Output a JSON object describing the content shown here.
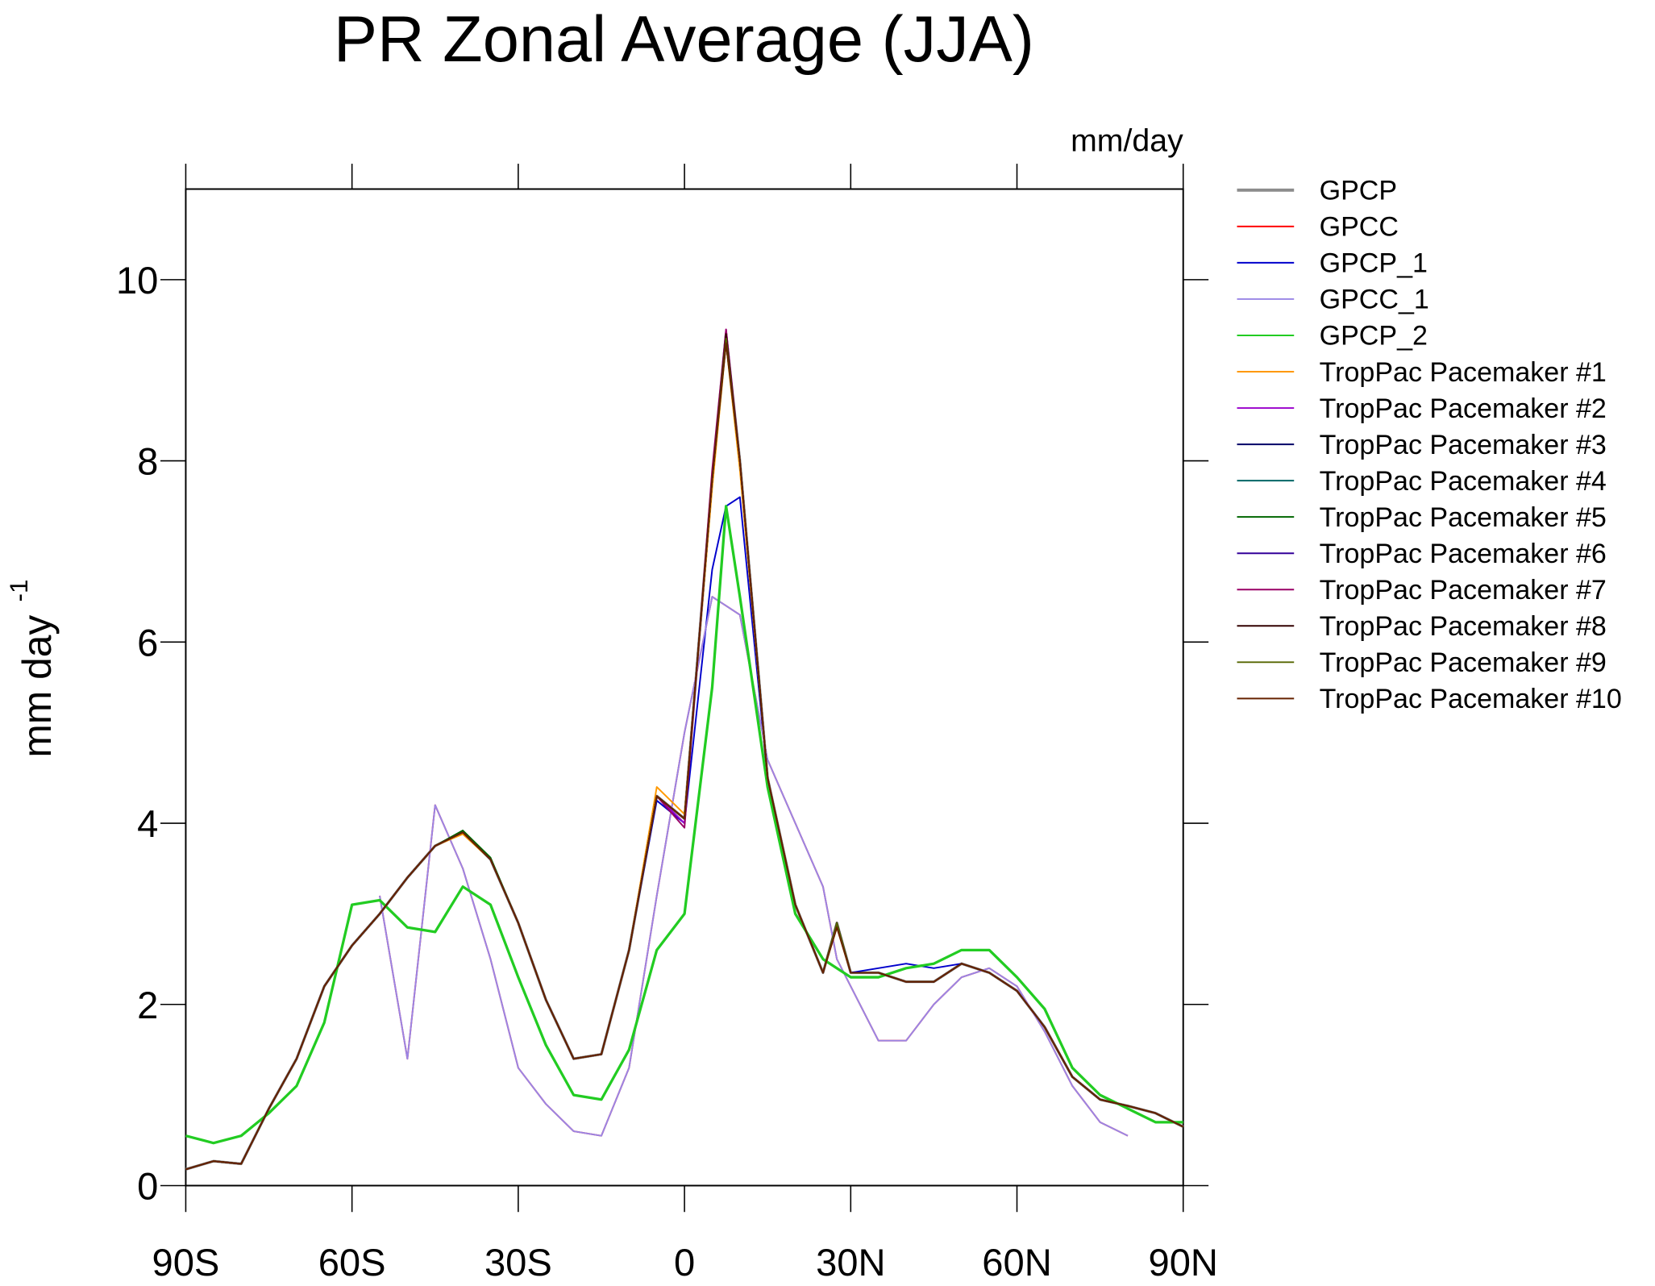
{
  "chart_data": {
    "type": "line",
    "title": "PR Zonal Average (JJA)",
    "subtitle": "mm/day",
    "ylabel": "mm day",
    "ylabel_superscript": "-1",
    "x": [
      -90,
      -85,
      -80,
      -75,
      -70,
      -65,
      -60,
      -55,
      -50,
      -45,
      -40,
      -35,
      -30,
      -25,
      -20,
      -15,
      -10,
      -5,
      0,
      5,
      7.5,
      10,
      15,
      20,
      25,
      27.5,
      30,
      35,
      40,
      45,
      50,
      55,
      60,
      65,
      70,
      75,
      80,
      85,
      90
    ],
    "xlim": [
      -90,
      90
    ],
    "xticks": [
      {
        "value": -90,
        "label": "90S"
      },
      {
        "value": -60,
        "label": "60S"
      },
      {
        "value": -30,
        "label": "30S"
      },
      0,
      {
        "value": 30,
        "label": "30N"
      },
      {
        "value": 60,
        "label": "60N"
      },
      {
        "value": 90,
        "label": "90N"
      }
    ],
    "ylim": [
      0,
      11
    ],
    "yticks": [
      0,
      2,
      4,
      6,
      8,
      10
    ],
    "legend": "outside right",
    "series": [
      {
        "name": "GPCP",
        "color": "#8c8c8c",
        "values": [
          0.18,
          0.27,
          0.24,
          0.85,
          1.4,
          2.2,
          2.65,
          3.0,
          3.4,
          3.75,
          3.9,
          3.6,
          2.9,
          2.05,
          1.4,
          1.45,
          2.6,
          4.3,
          4.05,
          7.8,
          9.4,
          8.0,
          4.5,
          3.1,
          2.35,
          2.9,
          2.35,
          2.35,
          2.25,
          2.25,
          2.45,
          2.35,
          2.15,
          1.75,
          1.2,
          0.95,
          0.88,
          0.8,
          0.65
        ]
      },
      {
        "name": "GPCC",
        "color": "#ff0000",
        "values": [
          null,
          null,
          null,
          null,
          null,
          null,
          null,
          3.2,
          1.4,
          4.2,
          3.5,
          2.5,
          1.3,
          0.9,
          0.6,
          0.55,
          1.3,
          3.2,
          5.0,
          6.5,
          6.4,
          6.3,
          4.7,
          4.0,
          3.3,
          2.5,
          2.2,
          1.6,
          1.6,
          2.0,
          2.3,
          2.4,
          2.2,
          1.7,
          1.1,
          0.7,
          0.55,
          null,
          null
        ]
      },
      {
        "name": "GPCP_1",
        "color": "#0000cc",
        "values": [
          0.18,
          0.27,
          0.24,
          0.85,
          1.4,
          2.2,
          2.65,
          3.0,
          3.4,
          3.75,
          3.9,
          3.6,
          2.9,
          2.05,
          1.4,
          1.45,
          2.6,
          4.25,
          4.0,
          6.8,
          7.5,
          7.6,
          4.5,
          3.1,
          2.35,
          2.9,
          2.35,
          2.4,
          2.45,
          2.4,
          2.45,
          2.35,
          2.15,
          1.75,
          1.2,
          0.95,
          0.88,
          0.8,
          0.65
        ]
      },
      {
        "name": "GPCC_1",
        "color": "#9a86e6",
        "values": [
          null,
          null,
          null,
          null,
          null,
          null,
          null,
          3.2,
          1.4,
          4.2,
          3.5,
          2.5,
          1.3,
          0.9,
          0.6,
          0.55,
          1.3,
          3.2,
          5.0,
          6.5,
          6.4,
          6.3,
          4.7,
          4.0,
          3.3,
          2.5,
          2.2,
          1.6,
          1.6,
          2.0,
          2.3,
          2.4,
          2.2,
          1.7,
          1.1,
          0.7,
          0.55,
          null,
          null
        ]
      },
      {
        "name": "GPCP_2",
        "color": "#22cc22",
        "values": [
          0.55,
          0.47,
          0.55,
          0.8,
          1.1,
          1.8,
          3.1,
          3.15,
          2.85,
          2.8,
          3.3,
          3.1,
          2.3,
          1.55,
          1.0,
          0.95,
          1.5,
          2.6,
          3.0,
          5.5,
          7.5,
          6.5,
          4.4,
          3.0,
          2.5,
          2.4,
          2.3,
          2.3,
          2.4,
          2.45,
          2.6,
          2.6,
          2.3,
          1.95,
          1.3,
          1.0,
          0.85,
          0.7,
          0.7
        ]
      },
      {
        "name": "TropPac Pacemaker #1",
        "color": "#ff9900",
        "values": [
          0.18,
          0.27,
          0.24,
          0.85,
          1.4,
          2.2,
          2.65,
          3.0,
          3.4,
          3.75,
          3.88,
          3.6,
          2.9,
          2.05,
          1.4,
          1.45,
          2.6,
          4.4,
          4.1,
          7.7,
          9.3,
          7.9,
          4.5,
          3.1,
          2.35,
          2.85,
          2.35,
          2.35,
          2.25,
          2.25,
          2.45,
          2.35,
          2.15,
          1.75,
          1.2,
          0.95,
          0.88,
          0.8,
          0.65
        ]
      },
      {
        "name": "TropPac Pacemaker #2",
        "color": "#9900cc",
        "values": [
          0.18,
          0.27,
          0.24,
          0.85,
          1.4,
          2.2,
          2.65,
          3.0,
          3.4,
          3.75,
          3.9,
          3.6,
          2.9,
          2.05,
          1.4,
          1.45,
          2.6,
          4.3,
          4.0,
          7.8,
          9.45,
          8.0,
          4.5,
          3.1,
          2.35,
          2.9,
          2.35,
          2.35,
          2.25,
          2.25,
          2.45,
          2.35,
          2.15,
          1.75,
          1.2,
          0.95,
          0.88,
          0.8,
          0.65
        ]
      },
      {
        "name": "TropPac Pacemaker #3",
        "color": "#000066",
        "values": [
          0.18,
          0.27,
          0.24,
          0.85,
          1.4,
          2.2,
          2.65,
          3.0,
          3.4,
          3.75,
          3.9,
          3.6,
          2.9,
          2.05,
          1.4,
          1.45,
          2.6,
          4.3,
          4.05,
          7.8,
          9.35,
          8.0,
          4.5,
          3.1,
          2.35,
          2.9,
          2.35,
          2.35,
          2.25,
          2.25,
          2.45,
          2.35,
          2.15,
          1.75,
          1.2,
          0.95,
          0.88,
          0.8,
          0.65
        ]
      },
      {
        "name": "TropPac Pacemaker #4",
        "color": "#006666",
        "values": [
          0.18,
          0.27,
          0.24,
          0.85,
          1.4,
          2.2,
          2.65,
          3.0,
          3.4,
          3.75,
          3.9,
          3.6,
          2.9,
          2.05,
          1.4,
          1.45,
          2.6,
          4.3,
          4.05,
          7.8,
          9.4,
          8.0,
          4.5,
          3.1,
          2.35,
          2.9,
          2.35,
          2.35,
          2.25,
          2.25,
          2.45,
          2.35,
          2.15,
          1.75,
          1.2,
          0.95,
          0.88,
          0.8,
          0.65
        ]
      },
      {
        "name": "TropPac Pacemaker #5",
        "color": "#006600",
        "values": [
          0.18,
          0.27,
          0.24,
          0.85,
          1.4,
          2.2,
          2.65,
          3.0,
          3.4,
          3.75,
          3.92,
          3.62,
          2.9,
          2.05,
          1.4,
          1.45,
          2.6,
          4.3,
          4.05,
          7.8,
          9.3,
          8.0,
          4.5,
          3.1,
          2.35,
          2.9,
          2.35,
          2.35,
          2.25,
          2.25,
          2.45,
          2.35,
          2.15,
          1.75,
          1.2,
          0.95,
          0.88,
          0.8,
          0.65
        ]
      },
      {
        "name": "TropPac Pacemaker #6",
        "color": "#330099",
        "values": [
          0.18,
          0.27,
          0.24,
          0.85,
          1.4,
          2.2,
          2.65,
          3.0,
          3.4,
          3.75,
          3.9,
          3.6,
          2.9,
          2.05,
          1.4,
          1.45,
          2.6,
          4.3,
          4.05,
          7.8,
          9.4,
          8.0,
          4.5,
          3.1,
          2.35,
          2.9,
          2.35,
          2.35,
          2.25,
          2.25,
          2.45,
          2.35,
          2.15,
          1.75,
          1.2,
          0.95,
          0.88,
          0.8,
          0.65
        ]
      },
      {
        "name": "TropPac Pacemaker #7",
        "color": "#990066",
        "values": [
          0.18,
          0.27,
          0.24,
          0.85,
          1.4,
          2.2,
          2.65,
          3.0,
          3.4,
          3.75,
          3.9,
          3.6,
          2.9,
          2.05,
          1.4,
          1.45,
          2.6,
          4.3,
          3.95,
          7.9,
          9.45,
          8.0,
          4.5,
          3.1,
          2.35,
          2.9,
          2.35,
          2.35,
          2.25,
          2.25,
          2.45,
          2.35,
          2.15,
          1.75,
          1.2,
          0.95,
          0.88,
          0.8,
          0.65
        ]
      },
      {
        "name": "TropPac Pacemaker #8",
        "color": "#330000",
        "values": [
          0.18,
          0.27,
          0.24,
          0.85,
          1.4,
          2.2,
          2.65,
          3.0,
          3.4,
          3.75,
          3.9,
          3.6,
          2.9,
          2.05,
          1.4,
          1.45,
          2.6,
          4.3,
          4.05,
          7.8,
          9.4,
          8.0,
          4.5,
          3.1,
          2.35,
          2.9,
          2.35,
          2.35,
          2.25,
          2.25,
          2.45,
          2.35,
          2.15,
          1.75,
          1.2,
          0.95,
          0.88,
          0.8,
          0.65
        ]
      },
      {
        "name": "TropPac Pacemaker #9",
        "color": "#556600",
        "values": [
          0.18,
          0.27,
          0.24,
          0.85,
          1.4,
          2.2,
          2.65,
          3.0,
          3.4,
          3.75,
          3.9,
          3.6,
          2.9,
          2.05,
          1.4,
          1.45,
          2.6,
          4.3,
          4.05,
          7.8,
          9.35,
          8.0,
          4.5,
          3.1,
          2.35,
          2.9,
          2.35,
          2.35,
          2.25,
          2.25,
          2.45,
          2.35,
          2.15,
          1.75,
          1.2,
          0.95,
          0.88,
          0.8,
          0.65
        ]
      },
      {
        "name": "TropPac Pacemaker #10",
        "color": "#662200",
        "values": [
          0.18,
          0.27,
          0.24,
          0.85,
          1.4,
          2.2,
          2.65,
          3.0,
          3.4,
          3.75,
          3.9,
          3.6,
          2.9,
          2.05,
          1.4,
          1.45,
          2.6,
          4.3,
          4.05,
          7.8,
          9.3,
          8.0,
          4.5,
          3.1,
          2.35,
          2.85,
          2.35,
          2.35,
          2.25,
          2.25,
          2.45,
          2.35,
          2.15,
          1.75,
          1.2,
          0.95,
          0.88,
          0.8,
          0.65
        ]
      }
    ]
  }
}
